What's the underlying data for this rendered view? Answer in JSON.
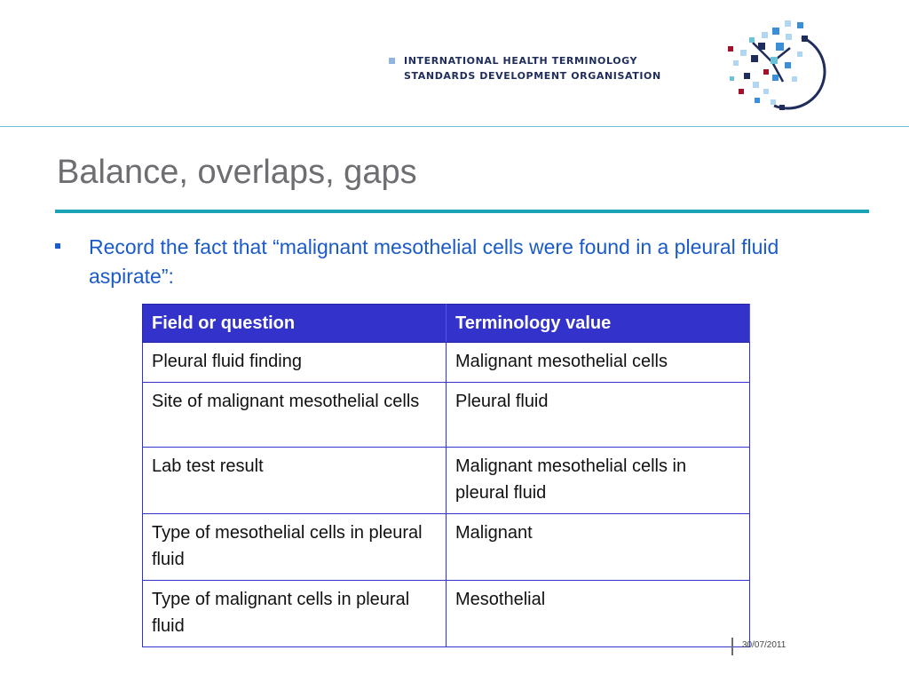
{
  "header": {
    "org_line1": "INTERNATIONAL HEALTH TERMINOLOGY",
    "org_line2": "STANDARDS DEVELOPMENT ORGANISATION",
    "logo_icon": "ihtsdo-logo-icon",
    "logo_colors": [
      "#1f2d5c",
      "#3a8fd8",
      "#b0d6f2",
      "#a3122a",
      "#6cc3d8"
    ]
  },
  "slide": {
    "title": "Balance, overlaps, gaps",
    "bullet": "Record the fact that “malignant mesothelial cells were found in a pleural fluid aspirate”:"
  },
  "table": {
    "headers": [
      "Field or question",
      "Terminology value"
    ],
    "rows": [
      [
        "Pleural fluid finding",
        "Malignant mesothelial cells"
      ],
      [
        "Site of malignant mesothelial cells",
        "Pleural fluid"
      ],
      [
        "Lab test result",
        "Malignant mesothelial cells in pleural fluid"
      ],
      [
        "Type of mesothelial cells in pleural fluid",
        "Malignant"
      ],
      [
        "Type of malignant cells in pleural fluid",
        "Mesothelial"
      ]
    ],
    "header_color": "#3333cc"
  },
  "footer": {
    "date": "30/07/2011"
  },
  "colors": {
    "title": "#6d6e71",
    "accent_rule": "#1aa2b5",
    "bullet_text": "#1a5bc9"
  }
}
